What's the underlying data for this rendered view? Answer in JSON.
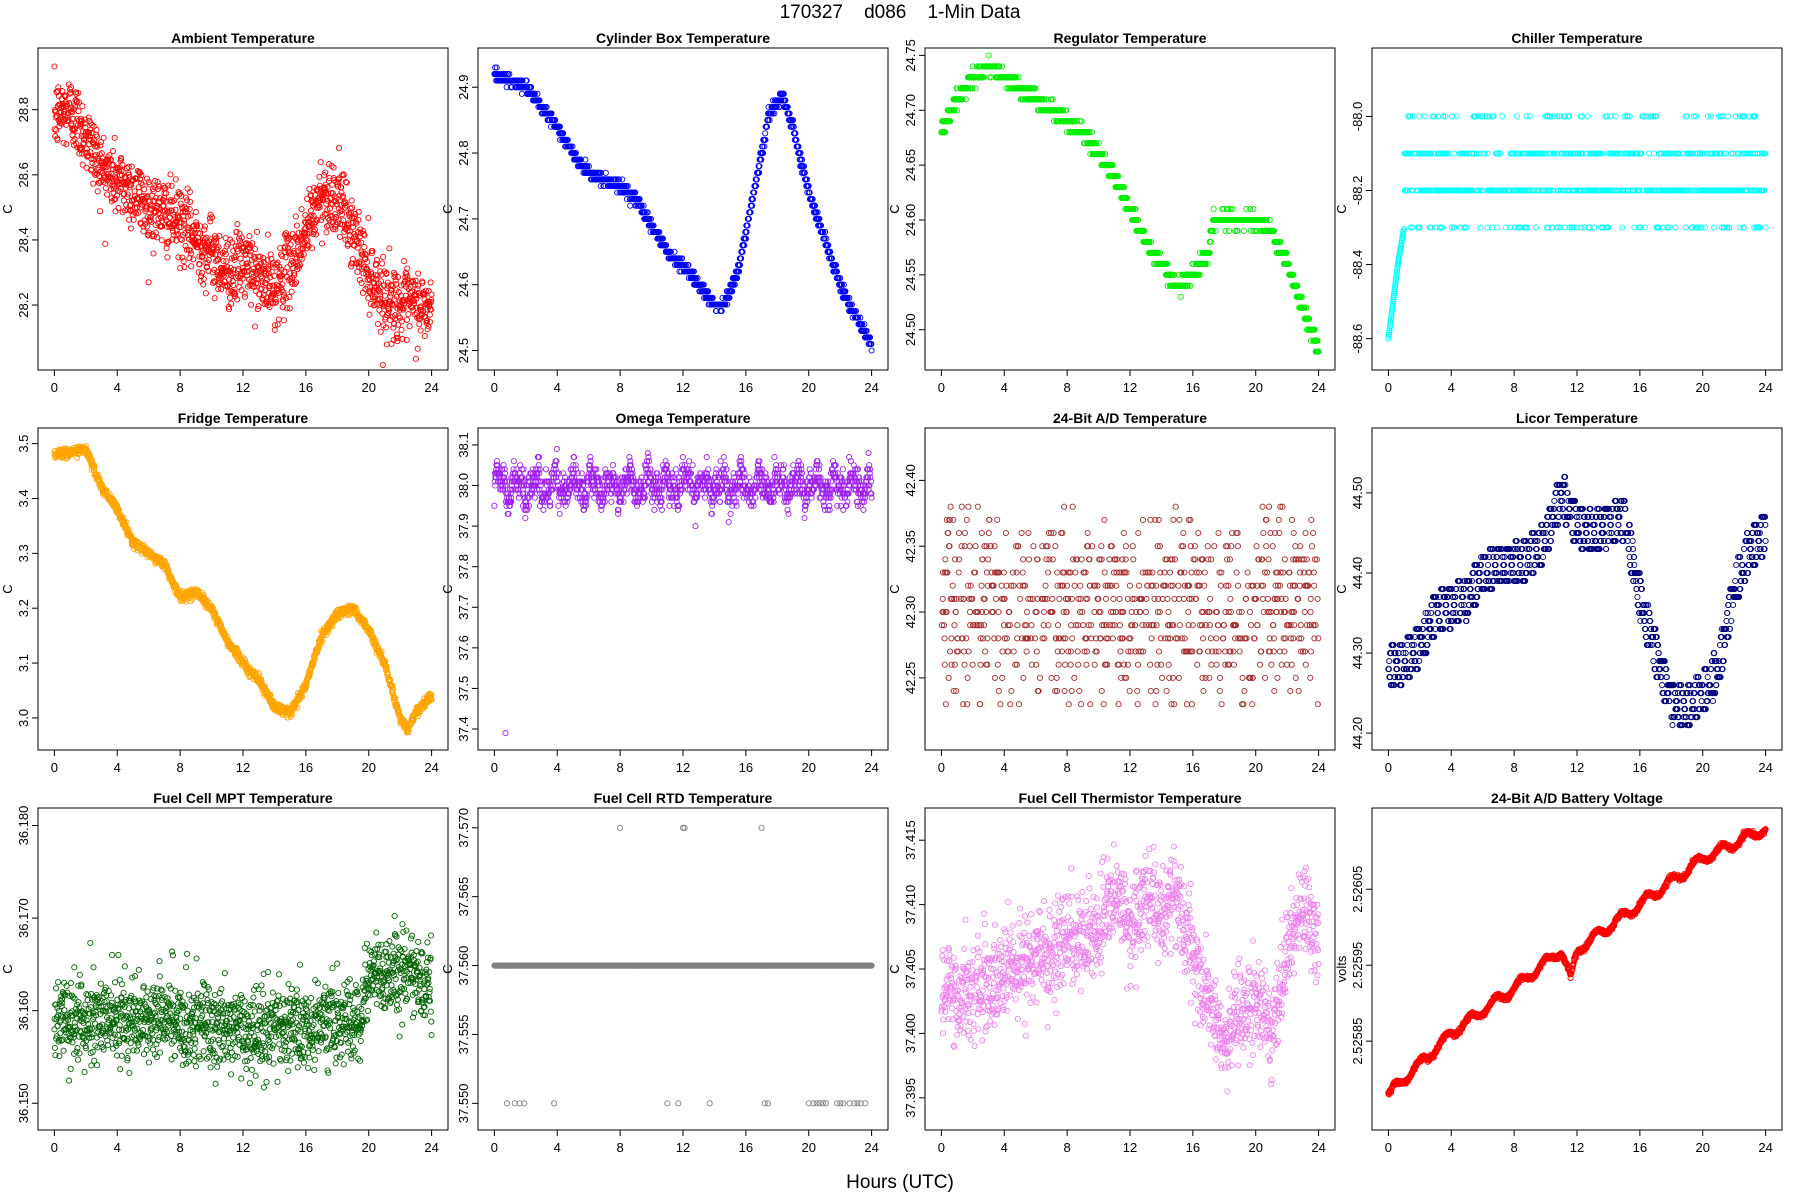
{
  "figure": {
    "title": "170327    d086    1-Min Data",
    "xlabel": "Hours (UTC)"
  },
  "chart_data": [
    {
      "type": "scatter",
      "title": "Ambient Temperature",
      "ylabel": "C",
      "color": "#ff0000",
      "xlim": [
        0,
        24
      ],
      "ylim": [
        28.04,
        28.95
      ],
      "xticks": [
        0,
        4,
        8,
        12,
        16,
        20,
        24
      ],
      "yticks": [
        28.2,
        28.4,
        28.6,
        28.8
      ],
      "ytick_labels": [
        "28.2",
        "28.4",
        "28.6",
        "28.8"
      ],
      "pattern": "noisy",
      "noise": 0.055,
      "n": 1440,
      "trend": [
        [
          0,
          28.78
        ],
        [
          1,
          28.8
        ],
        [
          2,
          28.72
        ],
        [
          3,
          28.62
        ],
        [
          4,
          28.58
        ],
        [
          5,
          28.55
        ],
        [
          6,
          28.5
        ],
        [
          7,
          28.48
        ],
        [
          8,
          28.45
        ],
        [
          9,
          28.4
        ],
        [
          10,
          28.36
        ],
        [
          11,
          28.3
        ],
        [
          12,
          28.33
        ],
        [
          13,
          28.28
        ],
        [
          14,
          28.25
        ],
        [
          15,
          28.32
        ],
        [
          16,
          28.42
        ],
        [
          17,
          28.54
        ],
        [
          18,
          28.53
        ],
        [
          19,
          28.42
        ],
        [
          20,
          28.3
        ],
        [
          21,
          28.22
        ],
        [
          22,
          28.2
        ],
        [
          23,
          28.2
        ],
        [
          24,
          28.18
        ]
      ]
    },
    {
      "type": "scatter",
      "title": "Cylinder Box Temperature",
      "ylabel": "C",
      "color": "#0000ff",
      "xlim": [
        0,
        24
      ],
      "ylim": [
        24.49,
        24.94
      ],
      "xticks": [
        0,
        4,
        8,
        12,
        16,
        20,
        24
      ],
      "yticks": [
        24.5,
        24.6,
        24.7,
        24.8,
        24.9
      ],
      "ytick_labels": [
        "24.5",
        "24.6",
        "24.7",
        "24.8",
        "24.9"
      ],
      "pattern": "stepped",
      "step": 0.01,
      "noise": 0.004,
      "n": 1440,
      "trend": [
        [
          0,
          24.92
        ],
        [
          1,
          24.91
        ],
        [
          2,
          24.9
        ],
        [
          3,
          24.87
        ],
        [
          4,
          24.84
        ],
        [
          5,
          24.8
        ],
        [
          6,
          24.77
        ],
        [
          7,
          24.76
        ],
        [
          8,
          24.75
        ],
        [
          9,
          24.73
        ],
        [
          10,
          24.69
        ],
        [
          11,
          24.65
        ],
        [
          12,
          24.63
        ],
        [
          13,
          24.6
        ],
        [
          14,
          24.57
        ],
        [
          14.6,
          24.57
        ],
        [
          15.5,
          24.62
        ],
        [
          16.5,
          24.74
        ],
        [
          17.5,
          24.86
        ],
        [
          18.3,
          24.89
        ],
        [
          19,
          24.84
        ],
        [
          20,
          24.74
        ],
        [
          21,
          24.67
        ],
        [
          22,
          24.6
        ],
        [
          23,
          24.55
        ],
        [
          24,
          24.51
        ]
      ]
    },
    {
      "type": "scatter",
      "title": "Regulator Temperature",
      "ylabel": "C",
      "color": "#00ee00",
      "xlim": [
        0,
        24
      ],
      "ylim": [
        24.475,
        24.745
      ],
      "xticks": [
        0,
        4,
        8,
        12,
        16,
        20,
        24
      ],
      "yticks": [
        24.5,
        24.55,
        24.6,
        24.65,
        24.7,
        24.75
      ],
      "ytick_labels": [
        "24.50",
        "24.55",
        "24.60",
        "24.65",
        "24.70",
        "24.75"
      ],
      "pattern": "stepped",
      "step": 0.01,
      "noise": 0.003,
      "n": 1440,
      "trend": [
        [
          0,
          24.68
        ],
        [
          1,
          24.71
        ],
        [
          2,
          24.73
        ],
        [
          3,
          24.74
        ],
        [
          4,
          24.73
        ],
        [
          5,
          24.72
        ],
        [
          6,
          24.71
        ],
        [
          7,
          24.7
        ],
        [
          8,
          24.69
        ],
        [
          9,
          24.68
        ],
        [
          10,
          24.66
        ],
        [
          11,
          24.64
        ],
        [
          12,
          24.61
        ],
        [
          13,
          24.58
        ],
        [
          14,
          24.56
        ],
        [
          15,
          24.54
        ],
        [
          16,
          24.55
        ],
        [
          17,
          24.57
        ],
        [
          17.3,
          24.6
        ],
        [
          18,
          24.6
        ],
        [
          20,
          24.6
        ],
        [
          21,
          24.59
        ],
        [
          22,
          24.56
        ],
        [
          23,
          24.52
        ],
        [
          24,
          24.48
        ]
      ]
    },
    {
      "type": "scatter",
      "title": "Chiller Temperature",
      "ylabel": "C",
      "color": "#00ffff",
      "xlim": [
        0,
        24
      ],
      "ylim": [
        -88.65,
        -87.85
      ],
      "xticks": [
        0,
        4,
        8,
        12,
        16,
        20,
        24
      ],
      "yticks": [
        -88.6,
        -88.4,
        -88.2,
        -88.0
      ],
      "ytick_labels": [
        "-88.6",
        "-88.4",
        "-88.2",
        "-88.0"
      ],
      "pattern": "levels",
      "levels": [
        -88.0,
        -88.1,
        -88.2,
        -88.3
      ],
      "weights": [
        0.12,
        0.33,
        0.42,
        0.13
      ],
      "n": 1440,
      "initial": [
        [
          0,
          -88.6
        ],
        [
          0.3,
          -88.5
        ],
        [
          0.6,
          -88.4
        ],
        [
          1.0,
          -88.3
        ]
      ]
    },
    {
      "type": "scatter",
      "title": "Fridge Temperature",
      "ylabel": "C",
      "color": "#ffa500",
      "xlim": [
        0,
        24
      ],
      "ylim": [
        2.965,
        3.505
      ],
      "xticks": [
        0,
        4,
        8,
        12,
        16,
        20,
        24
      ],
      "yticks": [
        3.0,
        3.1,
        3.2,
        3.3,
        3.4,
        3.5
      ],
      "ytick_labels": [
        "3.0",
        "3.1",
        "3.2",
        "3.3",
        "3.4",
        "3.5"
      ],
      "pattern": "smooth",
      "noise": 0.004,
      "n": 1440,
      "trend": [
        [
          0,
          3.48
        ],
        [
          1,
          3.485
        ],
        [
          2,
          3.49
        ],
        [
          3,
          3.42
        ],
        [
          4,
          3.38
        ],
        [
          5,
          3.32
        ],
        [
          6,
          3.3
        ],
        [
          7,
          3.28
        ],
        [
          8,
          3.22
        ],
        [
          9,
          3.23
        ],
        [
          10,
          3.2
        ],
        [
          11,
          3.14
        ],
        [
          12,
          3.1
        ],
        [
          13,
          3.07
        ],
        [
          14,
          3.02
        ],
        [
          15,
          3.01
        ],
        [
          16,
          3.06
        ],
        [
          17,
          3.15
        ],
        [
          18,
          3.19
        ],
        [
          19,
          3.2
        ],
        [
          20,
          3.16
        ],
        [
          21,
          3.1
        ],
        [
          22,
          3.0
        ],
        [
          22.5,
          2.98
        ],
        [
          23,
          3.01
        ],
        [
          24,
          3.04
        ]
      ]
    },
    {
      "type": "scatter",
      "title": "Omega Temperature",
      "ylabel": "C",
      "color": "#a020f0",
      "xlim": [
        0,
        24
      ],
      "ylim": [
        37.38,
        38.11
      ],
      "xticks": [
        0,
        4,
        8,
        12,
        16,
        20,
        24
      ],
      "yticks": [
        37.4,
        37.5,
        37.6,
        37.7,
        37.8,
        37.9,
        38.0,
        38.1
      ],
      "ytick_labels": [
        "37.4",
        "37.5",
        "37.6",
        "37.7",
        "37.8",
        "37.9",
        "38.0",
        "38.1"
      ],
      "pattern": "oscillating",
      "center": 38.0,
      "amp": 0.05,
      "step": 0.01,
      "n": 1440,
      "outliers": [
        [
          0.7,
          37.39
        ]
      ]
    },
    {
      "type": "scatter",
      "title": "24-Bit A/D Temperature",
      "ylabel": "C",
      "color": "#a52a2a",
      "xlim": [
        0,
        24
      ],
      "ylim": [
        42.205,
        42.43
      ],
      "xticks": [
        0,
        4,
        8,
        12,
        16,
        20,
        24
      ],
      "yticks": [
        42.25,
        42.3,
        42.35,
        42.4
      ],
      "ytick_labels": [
        "42.25",
        "42.30",
        "42.35",
        "42.40"
      ],
      "pattern": "levels",
      "levels": [
        42.23,
        42.24,
        42.25,
        42.26,
        42.27,
        42.28,
        42.29,
        42.3,
        42.31,
        42.32,
        42.33,
        42.34,
        42.35,
        42.36,
        42.37,
        42.38,
        42.39
      ],
      "weights": [
        0.02,
        0.03,
        0.05,
        0.06,
        0.08,
        0.1,
        0.09,
        0.1,
        0.1,
        0.09,
        0.08,
        0.06,
        0.05,
        0.04,
        0.03,
        0.02,
        0.01
      ],
      "n": 1440
    },
    {
      "type": "scatter",
      "title": "Licor Temperature",
      "ylabel": "C",
      "color": "#000080",
      "xlim": [
        0,
        24
      ],
      "ylim": [
        44.195,
        44.565
      ],
      "xticks": [
        0,
        4,
        8,
        12,
        16,
        20,
        24
      ],
      "yticks": [
        44.2,
        44.3,
        44.4,
        44.5
      ],
      "ytick_labels": [
        "44.20",
        "44.30",
        "44.40",
        "44.50"
      ],
      "pattern": "stepped",
      "step": 0.01,
      "noise": 0.0,
      "n": 1440,
      "swing": 0.05,
      "trend": [
        [
          0,
          44.28
        ],
        [
          1,
          44.29
        ],
        [
          2,
          44.31
        ],
        [
          3,
          44.35
        ],
        [
          4,
          44.36
        ],
        [
          5,
          44.37
        ],
        [
          6,
          44.4
        ],
        [
          7,
          44.41
        ],
        [
          8,
          44.41
        ],
        [
          9,
          44.42
        ],
        [
          10,
          44.44
        ],
        [
          11,
          44.5
        ],
        [
          12,
          44.46
        ],
        [
          13,
          44.45
        ],
        [
          14,
          44.46
        ],
        [
          15,
          44.47
        ],
        [
          16,
          44.37
        ],
        [
          17,
          44.3
        ],
        [
          18,
          44.24
        ],
        [
          19,
          44.23
        ],
        [
          20,
          44.25
        ],
        [
          21,
          44.28
        ],
        [
          22,
          44.38
        ],
        [
          23,
          44.43
        ],
        [
          24,
          44.45
        ]
      ]
    },
    {
      "type": "scatter",
      "title": "Fuel Cell MPT Temperature",
      "ylabel": "C",
      "color": "#006400",
      "xlim": [
        0,
        24
      ],
      "ylim": [
        36.1485,
        36.1805
      ],
      "xticks": [
        0,
        4,
        8,
        12,
        16,
        20,
        24
      ],
      "yticks": [
        36.15,
        36.16,
        36.17,
        36.18
      ],
      "ytick_labels": [
        "36.150",
        "36.160",
        "36.170",
        "36.180"
      ],
      "pattern": "noisy",
      "noise": 0.0022,
      "n": 1440,
      "trend": [
        [
          0,
          36.159
        ],
        [
          4,
          36.159
        ],
        [
          8,
          36.159
        ],
        [
          12,
          36.158
        ],
        [
          16,
          36.158
        ],
        [
          19.5,
          36.159
        ],
        [
          20,
          36.164
        ],
        [
          22,
          36.164
        ],
        [
          24,
          36.163
        ]
      ]
    },
    {
      "type": "scatter",
      "title": "Fuel Cell RTD Temperature",
      "ylabel": "C",
      "color": "#808080",
      "xlim": [
        0,
        24
      ],
      "ylim": [
        37.549,
        37.5705
      ],
      "xticks": [
        0,
        4,
        8,
        12,
        16,
        20,
        24
      ],
      "yticks": [
        37.55,
        37.555,
        37.56,
        37.565,
        37.57
      ],
      "ytick_labels": [
        "37.550",
        "37.555",
        "37.560",
        "37.565",
        "37.570"
      ],
      "pattern": "constant",
      "value": 37.56,
      "n": 1440,
      "outliers": [
        [
          8,
          37.57
        ],
        [
          12,
          37.57
        ],
        [
          12.1,
          37.57
        ],
        [
          17,
          37.57
        ],
        [
          0.8,
          37.55
        ],
        [
          1.3,
          37.55
        ],
        [
          1.6,
          37.55
        ],
        [
          1.9,
          37.55
        ],
        [
          3.8,
          37.55
        ],
        [
          11,
          37.55
        ],
        [
          11.7,
          37.55
        ],
        [
          13.7,
          37.55
        ],
        [
          17.2,
          37.55
        ],
        [
          17.4,
          37.55
        ],
        [
          20,
          37.55
        ],
        [
          20.3,
          37.55
        ],
        [
          20.5,
          37.55
        ],
        [
          20.7,
          37.55
        ],
        [
          20.9,
          37.55
        ],
        [
          21.1,
          37.55
        ],
        [
          21.8,
          37.55
        ],
        [
          22,
          37.55
        ],
        [
          22.2,
          37.55
        ],
        [
          22.6,
          37.55
        ],
        [
          22.9,
          37.55
        ],
        [
          23.1,
          37.55
        ],
        [
          23.3,
          37.55
        ],
        [
          23.6,
          37.55
        ]
      ]
    },
    {
      "type": "scatter",
      "title": "Fuel Cell Thermistor Temperature",
      "ylabel": "C",
      "color": "#ee82ee",
      "xlim": [
        0,
        24
      ],
      "ylim": [
        37.3935,
        37.4165
      ],
      "xticks": [
        0,
        4,
        8,
        12,
        16,
        20,
        24
      ],
      "yticks": [
        37.395,
        37.4,
        37.405,
        37.41,
        37.415
      ],
      "ytick_labels": [
        "37.395",
        "37.400",
        "37.405",
        "37.410",
        "37.415"
      ],
      "pattern": "noisy",
      "noise": 0.0018,
      "n": 1440,
      "trend": [
        [
          0,
          37.403
        ],
        [
          2,
          37.403
        ],
        [
          4,
          37.405
        ],
        [
          6,
          37.406
        ],
        [
          8,
          37.407
        ],
        [
          10,
          37.408
        ],
        [
          11,
          37.411
        ],
        [
          12,
          37.408
        ],
        [
          13,
          37.411
        ],
        [
          14,
          37.409
        ],
        [
          15,
          37.411
        ],
        [
          16,
          37.406
        ],
        [
          17,
          37.403
        ],
        [
          18,
          37.399
        ],
        [
          19,
          37.402
        ],
        [
          20,
          37.403
        ],
        [
          21,
          37.4
        ],
        [
          22,
          37.406
        ],
        [
          23,
          37.41
        ],
        [
          24,
          37.407
        ]
      ]
    },
    {
      "type": "scatter",
      "title": "24-Bit A/D Battery Voltage",
      "ylabel": "volts",
      "color": "#ff0000",
      "xlim": [
        0,
        24
      ],
      "ylim": [
        2.52575,
        2.52614
      ],
      "xticks": [
        0,
        4,
        8,
        12,
        16,
        20,
        24
      ],
      "yticks": [
        2.52585,
        2.52595,
        2.52605
      ],
      "ytick_labels": [
        "2.52585",
        "2.52595",
        "2.52605"
      ],
      "pattern": "wavy",
      "noise": 1.5e-06,
      "n": 1440,
      "waveAmp": 6e-06,
      "wavePeriod": 1.6,
      "trend": [
        [
          0,
          2.52578
        ],
        [
          4,
          2.52586
        ],
        [
          8,
          2.52592
        ],
        [
          11,
          2.52597
        ],
        [
          11.6,
          2.52593
        ],
        [
          12,
          2.52597
        ],
        [
          16,
          2.52603
        ],
        [
          20,
          2.52609
        ],
        [
          24,
          2.52613
        ]
      ]
    }
  ]
}
